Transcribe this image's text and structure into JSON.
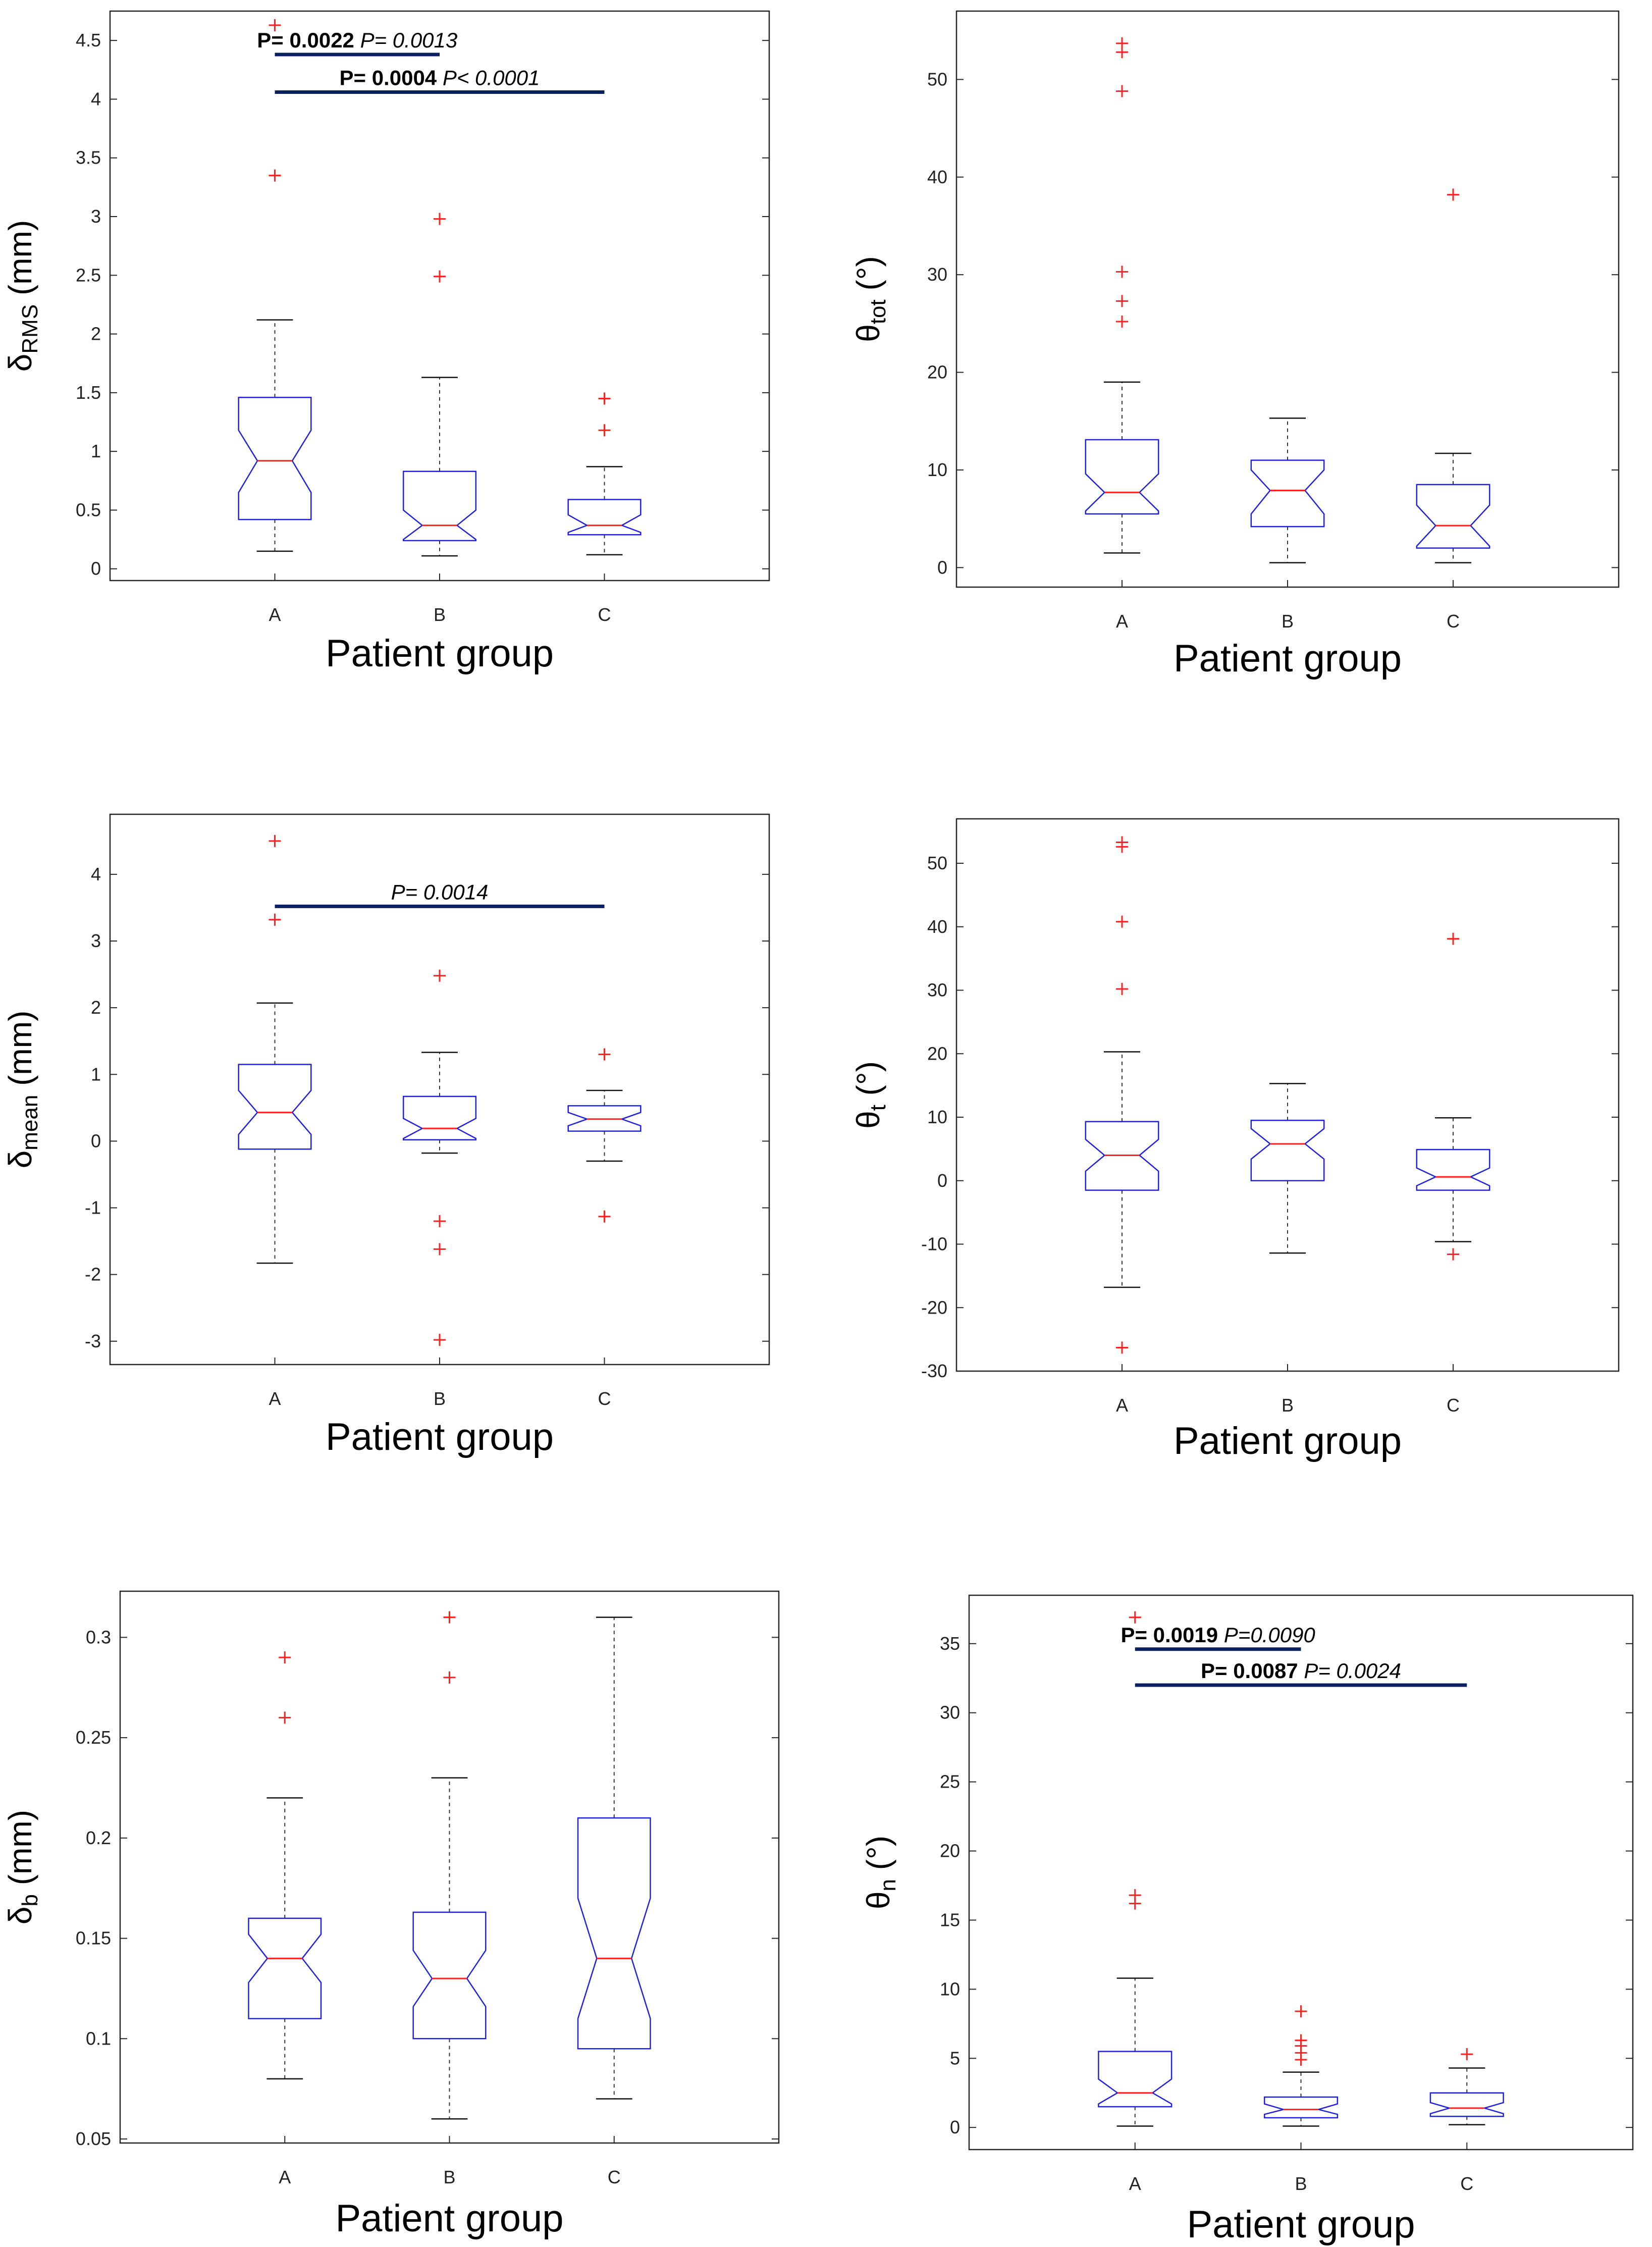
{
  "chart_data": [
    {
      "type": "box",
      "id": "p1",
      "ylabel": "δRMS (mm)",
      "ylabel_base": "δ",
      "ylabel_sub": "RMS",
      "ylabel_tail": " (mm)",
      "xlabel": "Patient group",
      "categories": [
        "A",
        "B",
        "C"
      ],
      "ylim": [
        -0.1,
        4.75
      ],
      "yticks": [
        0,
        0.5,
        1,
        1.5,
        2,
        2.5,
        3,
        3.5,
        4,
        4.5
      ],
      "ytick_labels": [
        "0",
        "0.5",
        "1",
        "1.5",
        "2",
        "2.5",
        "3",
        "3.5",
        "4",
        "4.5"
      ],
      "boxes": [
        {
          "group": "A",
          "min": 0.15,
          "q1": 0.42,
          "median": 0.92,
          "q3": 1.46,
          "max": 2.12,
          "notch": [
            0.65,
            1.18
          ],
          "outliers": [
            3.35,
            4.63
          ]
        },
        {
          "group": "B",
          "min": 0.11,
          "q1": 0.24,
          "median": 0.37,
          "q3": 0.83,
          "max": 1.63,
          "notch": [
            0.25,
            0.5
          ],
          "outliers": [
            2.49,
            2.98
          ]
        },
        {
          "group": "C",
          "min": 0.12,
          "q1": 0.29,
          "median": 0.37,
          "q3": 0.59,
          "max": 0.87,
          "notch": [
            0.31,
            0.46
          ],
          "outliers": [
            1.18,
            1.45
          ]
        }
      ],
      "annotations": [
        {
          "from": "A",
          "to": "B",
          "y": 4.38,
          "bold": "P= 0.0022",
          "italic": "P= 0.0013"
        },
        {
          "from": "A",
          "to": "C",
          "y": 4.06,
          "bold": "P= 0.0004",
          "italic": "P< 0.0001"
        }
      ]
    },
    {
      "type": "box",
      "id": "p2",
      "ylabel": "θtot (°)",
      "ylabel_base": "θ",
      "ylabel_sub": "tot",
      "ylabel_tail": " (°)",
      "xlabel": "Patient group",
      "categories": [
        "A",
        "B",
        "C"
      ],
      "ylim": [
        -2,
        57
      ],
      "yticks": [
        0,
        10,
        20,
        30,
        40,
        50
      ],
      "ytick_labels": [
        "0",
        "10",
        "20",
        "30",
        "40",
        "50"
      ],
      "boxes": [
        {
          "group": "A",
          "min": 1.5,
          "q1": 5.5,
          "median": 7.7,
          "q3": 13.1,
          "max": 19,
          "notch": [
            5.8,
            9.6
          ],
          "outliers": [
            25.2,
            27.3,
            30.3,
            48.8,
            52.8,
            53.7
          ]
        },
        {
          "group": "B",
          "min": 0.5,
          "q1": 4.2,
          "median": 7.9,
          "q3": 11,
          "max": 15.3,
          "notch": [
            5.5,
            10
          ],
          "outliers": []
        },
        {
          "group": "C",
          "min": 0.5,
          "q1": 2,
          "median": 4.3,
          "q3": 8.5,
          "max": 11.7,
          "notch": [
            2.2,
            6.4
          ],
          "outliers": [
            38.2
          ]
        }
      ],
      "annotations": []
    },
    {
      "type": "box",
      "id": "p3",
      "ylabel": "δmean (mm)",
      "ylabel_base": "δ",
      "ylabel_sub": "mean",
      "ylabel_tail": " (mm)",
      "xlabel": "Patient group",
      "categories": [
        "A",
        "B",
        "C"
      ],
      "ylim": [
        -3.35,
        4.9
      ],
      "yticks": [
        -3,
        -2,
        -1,
        0,
        1,
        2,
        3,
        4
      ],
      "ytick_labels": [
        "-3",
        "-2",
        "-1",
        "0",
        "1",
        "2",
        "3",
        "4"
      ],
      "boxes": [
        {
          "group": "A",
          "min": -1.83,
          "q1": -0.12,
          "median": 0.43,
          "q3": 1.15,
          "max": 2.07,
          "notch": [
            0.1,
            0.76
          ],
          "outliers": [
            3.32,
            4.5
          ]
        },
        {
          "group": "B",
          "min": -0.18,
          "q1": 0.02,
          "median": 0.19,
          "q3": 0.67,
          "max": 1.33,
          "notch": [
            0.04,
            0.34
          ],
          "outliers": [
            -1.2,
            -1.62,
            -2.98,
            2.48
          ]
        },
        {
          "group": "C",
          "min": -0.3,
          "q1": 0.15,
          "median": 0.33,
          "q3": 0.53,
          "max": 0.76,
          "notch": [
            0.23,
            0.43
          ],
          "outliers": [
            1.3,
            -1.13
          ]
        }
      ],
      "annotations": [
        {
          "from": "A",
          "to": "C",
          "y": 3.52,
          "bold": "",
          "italic": "P= 0.0014"
        }
      ]
    },
    {
      "type": "box",
      "id": "p4",
      "ylabel": "θt (°)",
      "ylabel_base": "θ",
      "ylabel_sub": "t",
      "ylabel_tail": " (°)",
      "xlabel": "Patient group",
      "categories": [
        "A",
        "B",
        "C"
      ],
      "ylim": [
        -30,
        57
      ],
      "yticks": [
        -30,
        -20,
        -10,
        0,
        10,
        20,
        30,
        40,
        50
      ],
      "ytick_labels": [
        "-30",
        "-20",
        "-10",
        "0",
        "10",
        "20",
        "30",
        "40",
        "50"
      ],
      "boxes": [
        {
          "group": "A",
          "min": -16.8,
          "q1": -1.5,
          "median": 4,
          "q3": 9.3,
          "max": 20.3,
          "notch": [
            1.5,
            6.5
          ],
          "outliers": [
            -26.3,
            30.2,
            40.8,
            52.6,
            53.3
          ]
        },
        {
          "group": "B",
          "min": -11.4,
          "q1": 0,
          "median": 5.8,
          "q3": 9.5,
          "max": 15.3,
          "notch": [
            3.4,
            8.2
          ],
          "outliers": []
        },
        {
          "group": "C",
          "min": -9.6,
          "q1": -1.5,
          "median": 0.6,
          "q3": 4.9,
          "max": 9.9,
          "notch": [
            -0.8,
            2
          ],
          "outliers": [
            -11.6,
            38.1
          ]
        }
      ],
      "annotations": []
    },
    {
      "type": "box",
      "id": "p5",
      "ylabel": "δb (mm)",
      "ylabel_base": "δ",
      "ylabel_sub": "b",
      "ylabel_tail": " (mm)",
      "xlabel": "Patient group",
      "categories": [
        "A",
        "B",
        "C"
      ],
      "ylim": [
        0.048,
        0.323
      ],
      "yticks": [
        0.05,
        0.1,
        0.15,
        0.2,
        0.25,
        0.3
      ],
      "ytick_labels": [
        "0.05",
        "0.1",
        "0.15",
        "0.2",
        "0.25",
        "0.3"
      ],
      "boxes": [
        {
          "group": "A",
          "min": 0.08,
          "q1": 0.11,
          "median": 0.14,
          "q3": 0.16,
          "max": 0.22,
          "notch": [
            0.128,
            0.152
          ],
          "outliers": [
            0.26,
            0.29
          ]
        },
        {
          "group": "B",
          "min": 0.06,
          "q1": 0.1,
          "median": 0.13,
          "q3": 0.163,
          "max": 0.23,
          "notch": [
            0.116,
            0.144
          ],
          "outliers": [
            0.28,
            0.31
          ]
        },
        {
          "group": "C",
          "min": 0.07,
          "q1": 0.095,
          "median": 0.14,
          "q3": 0.21,
          "max": 0.31,
          "notch": [
            0.11,
            0.17
          ],
          "outliers": []
        }
      ],
      "annotations": []
    },
    {
      "type": "box",
      "id": "p6",
      "ylabel": "θn (°)",
      "ylabel_base": "θ",
      "ylabel_sub": "n",
      "ylabel_tail": " (°)",
      "xlabel": "Patient group",
      "categories": [
        "A",
        "B",
        "C"
      ],
      "ylim": [
        -1.6,
        38.5
      ],
      "yticks": [
        0,
        5,
        10,
        15,
        20,
        25,
        30,
        35
      ],
      "ytick_labels": [
        "0",
        "5",
        "10",
        "15",
        "20",
        "25",
        "30",
        "35"
      ],
      "boxes": [
        {
          "group": "A",
          "min": 0.1,
          "q1": 1.5,
          "median": 2.5,
          "q3": 5.5,
          "max": 10.8,
          "notch": [
            1.7,
            3.5
          ],
          "outliers": [
            16.2,
            16.8,
            36.9
          ]
        },
        {
          "group": "B",
          "min": 0.1,
          "q1": 0.7,
          "median": 1.3,
          "q3": 2.2,
          "max": 4,
          "notch": [
            0.95,
            1.7
          ],
          "outliers": [
            4.9,
            5.4,
            5.9,
            6.3,
            8.4
          ]
        },
        {
          "group": "C",
          "min": 0.2,
          "q1": 0.8,
          "median": 1.4,
          "q3": 2.5,
          "max": 4.3,
          "notch": [
            1.0,
            1.8
          ],
          "outliers": [
            5.3
          ]
        }
      ],
      "annotations": [
        {
          "from": "A",
          "to": "B",
          "y": 34.6,
          "bold": "P= 0.0019",
          "italic": "P=0.0090"
        },
        {
          "from": "A",
          "to": "C",
          "y": 32,
          "bold": "P= 0.0087",
          "italic": "P= 0.0024"
        }
      ]
    }
  ]
}
